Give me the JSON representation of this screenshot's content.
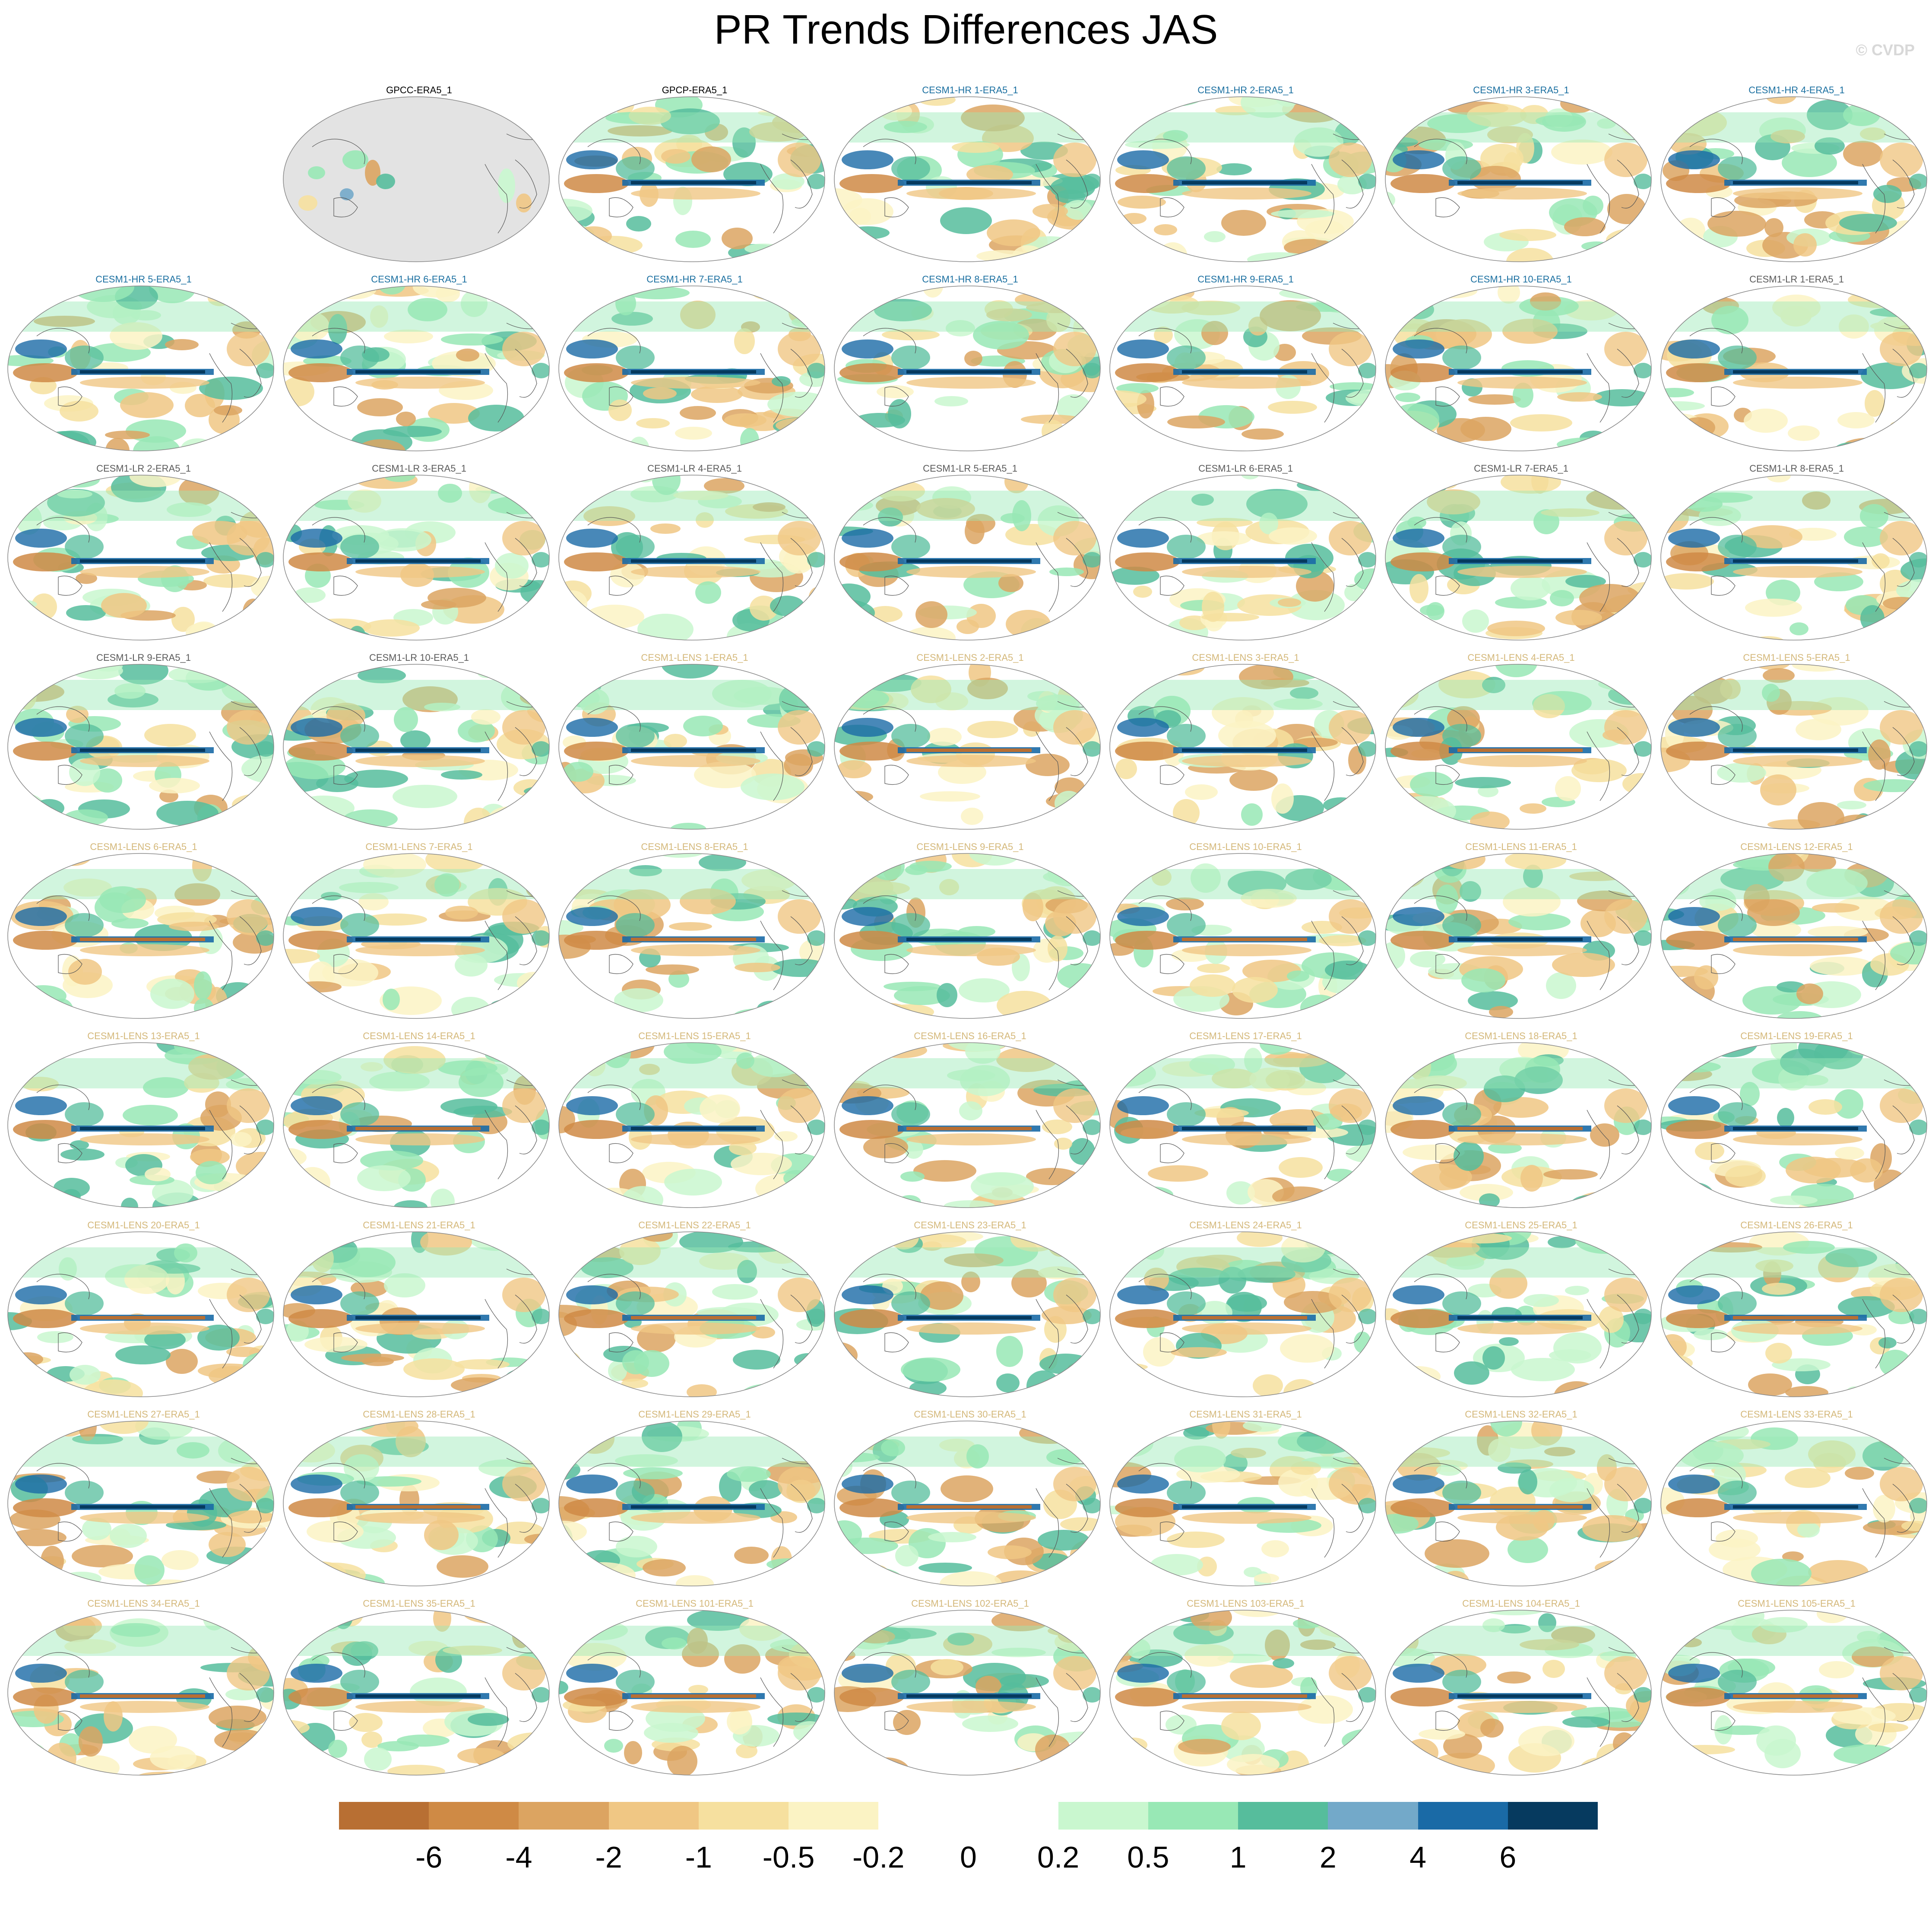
{
  "title": "PR Trends Differences JAS",
  "watermark": "© CVDP",
  "colors": {
    "observation_title": "#000000",
    "hr_title": "#1a6fa0",
    "lr_title": "#5a5a5a",
    "lens_title": "#d4b87a",
    "land": "#e3e3e3"
  },
  "panels": [
    {
      "title": "GPCC-ERA5_1",
      "group": "observation",
      "variant": "gpcc"
    },
    {
      "title": "GPCP-ERA5_1",
      "group": "observation",
      "variant": "gpcp"
    },
    {
      "title": "CESM1-HR 1-ERA5_1",
      "group": "hr"
    },
    {
      "title": "CESM1-HR 2-ERA5_1",
      "group": "hr"
    },
    {
      "title": "CESM1-HR 3-ERA5_1",
      "group": "hr"
    },
    {
      "title": "CESM1-HR 4-ERA5_1",
      "group": "hr"
    },
    {
      "title": "CESM1-HR 5-ERA5_1",
      "group": "hr"
    },
    {
      "title": "CESM1-HR 6-ERA5_1",
      "group": "hr"
    },
    {
      "title": "CESM1-HR 7-ERA5_1",
      "group": "hr"
    },
    {
      "title": "CESM1-HR 8-ERA5_1",
      "group": "hr"
    },
    {
      "title": "CESM1-HR 9-ERA5_1",
      "group": "hr"
    },
    {
      "title": "CESM1-HR 10-ERA5_1",
      "group": "hr"
    },
    {
      "title": "CESM1-LR 1-ERA5_1",
      "group": "lr"
    },
    {
      "title": "CESM1-LR 2-ERA5_1",
      "group": "lr"
    },
    {
      "title": "CESM1-LR 3-ERA5_1",
      "group": "lr"
    },
    {
      "title": "CESM1-LR 4-ERA5_1",
      "group": "lr"
    },
    {
      "title": "CESM1-LR 5-ERA5_1",
      "group": "lr"
    },
    {
      "title": "CESM1-LR 6-ERA5_1",
      "group": "lr"
    },
    {
      "title": "CESM1-LR 7-ERA5_1",
      "group": "lr"
    },
    {
      "title": "CESM1-LR 8-ERA5_1",
      "group": "lr"
    },
    {
      "title": "CESM1-LR 9-ERA5_1",
      "group": "lr"
    },
    {
      "title": "CESM1-LR 10-ERA5_1",
      "group": "lr"
    },
    {
      "title": "CESM1-LENS 1-ERA5_1",
      "group": "lens"
    },
    {
      "title": "CESM1-LENS 2-ERA5_1",
      "group": "lens"
    },
    {
      "title": "CESM1-LENS 3-ERA5_1",
      "group": "lens"
    },
    {
      "title": "CESM1-LENS 4-ERA5_1",
      "group": "lens"
    },
    {
      "title": "CESM1-LENS 5-ERA5_1",
      "group": "lens"
    },
    {
      "title": "CESM1-LENS 6-ERA5_1",
      "group": "lens"
    },
    {
      "title": "CESM1-LENS 7-ERA5_1",
      "group": "lens"
    },
    {
      "title": "CESM1-LENS 8-ERA5_1",
      "group": "lens"
    },
    {
      "title": "CESM1-LENS 9-ERA5_1",
      "group": "lens"
    },
    {
      "title": "CESM1-LENS 10-ERA5_1",
      "group": "lens"
    },
    {
      "title": "CESM1-LENS 11-ERA5_1",
      "group": "lens"
    },
    {
      "title": "CESM1-LENS 12-ERA5_1",
      "group": "lens"
    },
    {
      "title": "CESM1-LENS 13-ERA5_1",
      "group": "lens"
    },
    {
      "title": "CESM1-LENS 14-ERA5_1",
      "group": "lens"
    },
    {
      "title": "CESM1-LENS 15-ERA5_1",
      "group": "lens"
    },
    {
      "title": "CESM1-LENS 16-ERA5_1",
      "group": "lens"
    },
    {
      "title": "CESM1-LENS 17-ERA5_1",
      "group": "lens"
    },
    {
      "title": "CESM1-LENS 18-ERA5_1",
      "group": "lens"
    },
    {
      "title": "CESM1-LENS 19-ERA5_1",
      "group": "lens"
    },
    {
      "title": "CESM1-LENS 20-ERA5_1",
      "group": "lens"
    },
    {
      "title": "CESM1-LENS 21-ERA5_1",
      "group": "lens"
    },
    {
      "title": "CESM1-LENS 22-ERA5_1",
      "group": "lens"
    },
    {
      "title": "CESM1-LENS 23-ERA5_1",
      "group": "lens"
    },
    {
      "title": "CESM1-LENS 24-ERA5_1",
      "group": "lens"
    },
    {
      "title": "CESM1-LENS 25-ERA5_1",
      "group": "lens"
    },
    {
      "title": "CESM1-LENS 26-ERA5_1",
      "group": "lens"
    },
    {
      "title": "CESM1-LENS 27-ERA5_1",
      "group": "lens"
    },
    {
      "title": "CESM1-LENS 28-ERA5_1",
      "group": "lens"
    },
    {
      "title": "CESM1-LENS 29-ERA5_1",
      "group": "lens"
    },
    {
      "title": "CESM1-LENS 30-ERA5_1",
      "group": "lens"
    },
    {
      "title": "CESM1-LENS 31-ERA5_1",
      "group": "lens"
    },
    {
      "title": "CESM1-LENS 32-ERA5_1",
      "group": "lens"
    },
    {
      "title": "CESM1-LENS 33-ERA5_1",
      "group": "lens"
    },
    {
      "title": "CESM1-LENS 34-ERA5_1",
      "group": "lens"
    },
    {
      "title": "CESM1-LENS 35-ERA5_1",
      "group": "lens"
    },
    {
      "title": "CESM1-LENS 101-ERA5_1",
      "group": "lens"
    },
    {
      "title": "CESM1-LENS 102-ERA5_1",
      "group": "lens"
    },
    {
      "title": "CESM1-LENS 103-ERA5_1",
      "group": "lens"
    },
    {
      "title": "CESM1-LENS 104-ERA5_1",
      "group": "lens"
    },
    {
      "title": "CESM1-LENS 105-ERA5_1",
      "group": "lens"
    }
  ],
  "colorbar": {
    "labels": [
      "-6",
      "-4",
      "-2",
      "-1",
      "-0.5",
      "-0.2",
      "0",
      "0.2",
      "0.5",
      "1",
      "2",
      "4",
      "6"
    ],
    "colors": [
      "#b86f33",
      "#cf8a45",
      "#dca461",
      "#f0c784",
      "#f6e09f",
      "#fbf3c4",
      "#ffffff",
      "#ffffff",
      "#c9f7cf",
      "#98e8b5",
      "#56bd9c",
      "#73a9c9",
      "#1a6aa6",
      "#063a5f"
    ]
  }
}
